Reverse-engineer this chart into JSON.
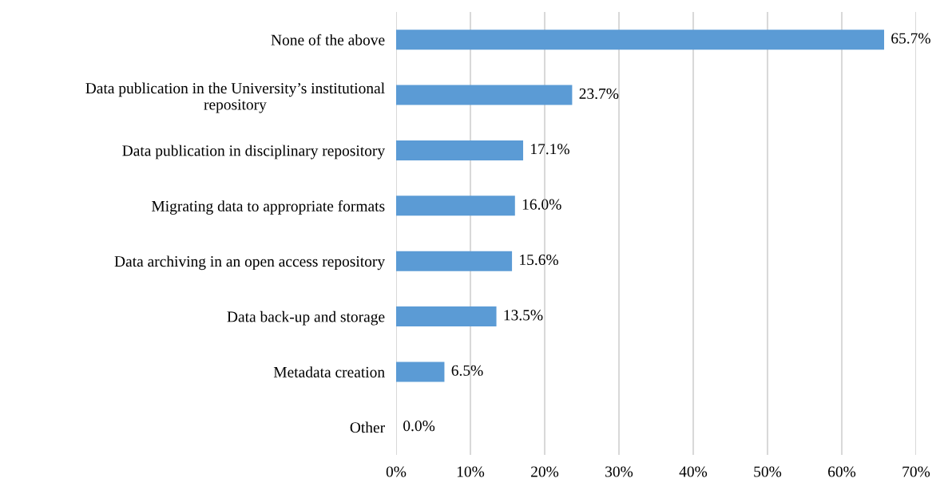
{
  "chart_data": {
    "type": "bar",
    "orientation": "horizontal",
    "categories": [
      "None of the above",
      "Data publication in the University’s institutional\nrepository",
      "Data publication in disciplinary repository",
      "Migrating data to appropriate formats",
      "Data archiving in an open access repository",
      "Data back-up and storage",
      "Metadata creation",
      "Other"
    ],
    "values": [
      65.7,
      23.7,
      17.1,
      16.0,
      15.6,
      13.5,
      6.5,
      0.0
    ],
    "value_labels": [
      "65.7%",
      "23.7%",
      "17.1%",
      "16.0%",
      "15.6%",
      "13.5%",
      "6.5%",
      "0.0%"
    ],
    "color": "#5b9bd5",
    "xlim": [
      0,
      70
    ],
    "xticks": [
      {
        "value": 0,
        "label": "0%"
      },
      {
        "value": 10,
        "label": "10%"
      },
      {
        "value": 20,
        "label": "20%"
      },
      {
        "value": 30,
        "label": "30%"
      },
      {
        "value": 40,
        "label": "40%"
      },
      {
        "value": 50,
        "label": "50%"
      },
      {
        "value": 60,
        "label": "60%"
      },
      {
        "value": 70,
        "label": "70%"
      }
    ],
    "grid": "x"
  }
}
